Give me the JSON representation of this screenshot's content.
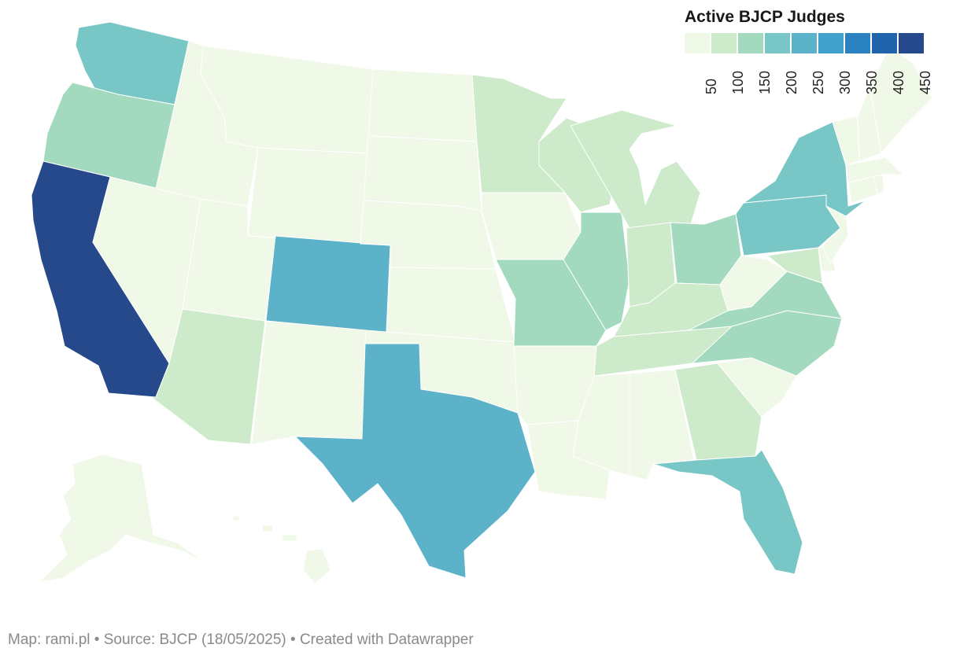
{
  "legend": {
    "title": "Active BJCP Judges",
    "ticks": [
      "50",
      "100",
      "150",
      "200",
      "250",
      "300",
      "350",
      "400",
      "450"
    ],
    "bins": [
      "#f0f8e8",
      "#cdeacb",
      "#a3dabf",
      "#78c7c6",
      "#5cb3c9",
      "#41a0cc",
      "#2b82c0",
      "#1f64aa",
      "#25498a"
    ]
  },
  "footer": {
    "credit": "Map: rami.pl • Source: BJCP (18/05/2025) • Created with Datawrapper"
  },
  "states": {
    "CA": {
      "bin": 8
    },
    "WA": {
      "bin": 3
    },
    "OR": {
      "bin": 2
    },
    "CO": {
      "bin": 4
    },
    "TX": {
      "bin": 4
    },
    "FL": {
      "bin": 3
    },
    "NY": {
      "bin": 3
    },
    "PA": {
      "bin": 3
    },
    "IL": {
      "bin": 2
    },
    "MO": {
      "bin": 2
    },
    "OH": {
      "bin": 2
    },
    "VA": {
      "bin": 2
    },
    "NC": {
      "bin": 2
    },
    "MN": {
      "bin": 1
    },
    "WI": {
      "bin": 1
    },
    "MI": {
      "bin": 1
    },
    "AZ": {
      "bin": 1
    },
    "GA": {
      "bin": 1
    },
    "IN": {
      "bin": 1
    },
    "KY": {
      "bin": 1
    },
    "TN": {
      "bin": 1
    },
    "MD": {
      "bin": 1
    },
    "NV": {
      "bin": 0
    },
    "ID": {
      "bin": 0
    },
    "MT": {
      "bin": 0
    },
    "WY": {
      "bin": 0
    },
    "UT": {
      "bin": 0
    },
    "NM": {
      "bin": 0
    },
    "ND": {
      "bin": 0
    },
    "SD": {
      "bin": 0
    },
    "NE": {
      "bin": 0
    },
    "KS": {
      "bin": 0
    },
    "OK": {
      "bin": 0
    },
    "IA": {
      "bin": 0
    },
    "AR": {
      "bin": 0
    },
    "LA": {
      "bin": 0
    },
    "MS": {
      "bin": 0
    },
    "AL": {
      "bin": 0
    },
    "SC": {
      "bin": 0
    },
    "WV": {
      "bin": 0
    },
    "NJ": {
      "bin": 0
    },
    "DE": {
      "bin": 0
    },
    "CT": {
      "bin": 0
    },
    "RI": {
      "bin": 0
    },
    "MA": {
      "bin": 0
    },
    "VT": {
      "bin": 0
    },
    "NH": {
      "bin": 0
    },
    "ME": {
      "bin": 0
    },
    "AK": {
      "bin": 0
    },
    "HI": {
      "bin": 0
    }
  }
}
